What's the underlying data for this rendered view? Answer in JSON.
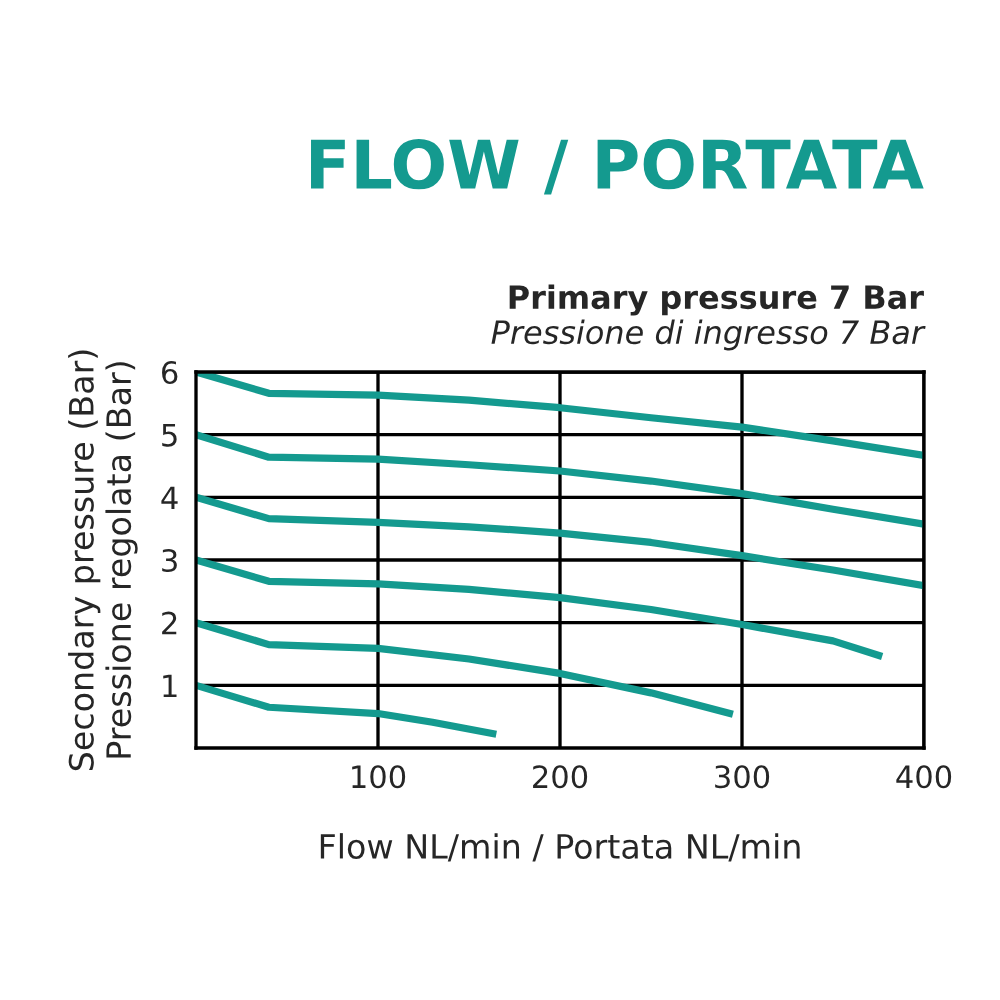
{
  "chart_data": {
    "type": "line",
    "title": "FLOW / PORTATA",
    "subtitle": "Primary pressure 7 Bar",
    "annotations": [
      "Pressione di ingresso 7 Bar"
    ],
    "xlabel": "Flow NL/min / Portata NL/min",
    "ylabel": "Secondary pressure (Bar)\nPressione regolata (Bar)",
    "xlim": [
      0,
      400
    ],
    "ylim": [
      0,
      6
    ],
    "xticks": [
      100,
      200,
      300,
      400
    ],
    "yticks": [
      1,
      2,
      3,
      4,
      5,
      6
    ],
    "grid": true,
    "series": [
      {
        "color": "#149a8f",
        "x": [
          0,
          40,
          100,
          150,
          200,
          250,
          300,
          350,
          400
        ],
        "values": [
          6.0,
          5.66,
          5.63,
          5.55,
          5.43,
          5.27,
          5.12,
          4.9,
          4.67
        ]
      },
      {
        "color": "#149a8f",
        "x": [
          0,
          40,
          100,
          150,
          200,
          250,
          300,
          350,
          400
        ],
        "values": [
          5.0,
          4.64,
          4.61,
          4.52,
          4.42,
          4.26,
          4.06,
          3.81,
          3.57
        ]
      },
      {
        "color": "#149a8f",
        "x": [
          0,
          40,
          100,
          150,
          200,
          250,
          300,
          350,
          400
        ],
        "values": [
          4.0,
          3.66,
          3.6,
          3.53,
          3.43,
          3.28,
          3.07,
          2.84,
          2.59
        ]
      },
      {
        "color": "#149a8f",
        "x": [
          0,
          40,
          100,
          150,
          200,
          250,
          300,
          350,
          377
        ],
        "values": [
          3.0,
          2.66,
          2.62,
          2.53,
          2.4,
          2.21,
          1.97,
          1.71,
          1.46
        ]
      },
      {
        "color": "#149a8f",
        "x": [
          0,
          40,
          100,
          150,
          200,
          250,
          295
        ],
        "values": [
          2.0,
          1.65,
          1.59,
          1.42,
          1.19,
          0.88,
          0.54
        ]
      },
      {
        "color": "#149a8f",
        "x": [
          0,
          40,
          100,
          130,
          165
        ],
        "values": [
          1.0,
          0.65,
          0.55,
          0.41,
          0.22
        ]
      }
    ]
  }
}
